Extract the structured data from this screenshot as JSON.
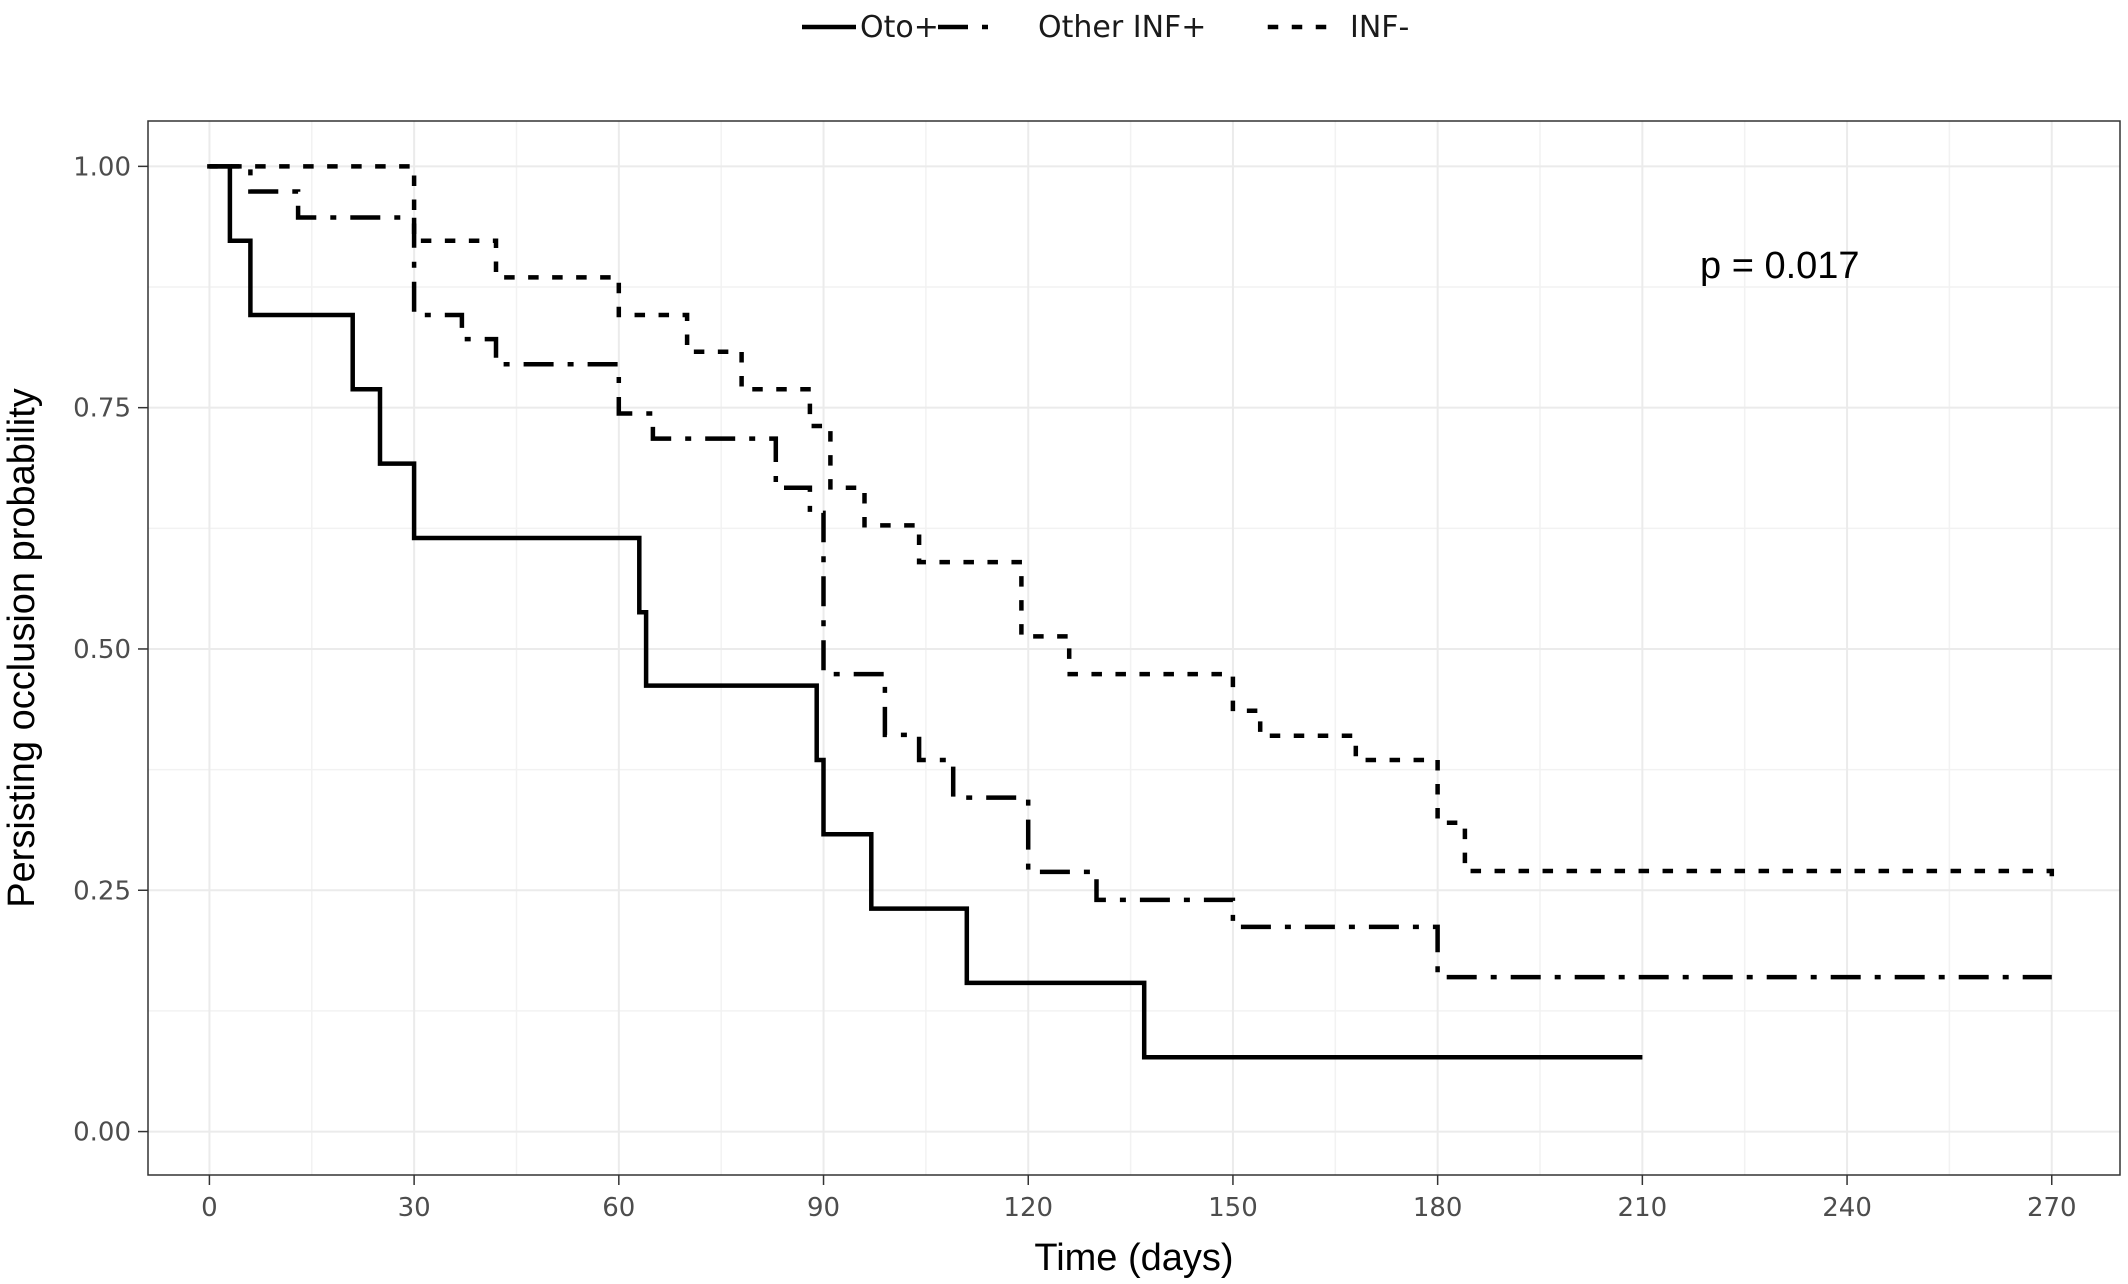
{
  "chart_data": {
    "type": "line",
    "subtype": "step",
    "xlabel": "Time (days)",
    "ylabel": "Persisting occlusion probability",
    "xlim": [
      -9,
      280
    ],
    "ylim": [
      -0.045,
      1.047
    ],
    "xticks": [
      0,
      30,
      60,
      90,
      120,
      150,
      180,
      210,
      240,
      270
    ],
    "xtick_labels": [
      "0",
      "30",
      "60",
      "90",
      "120",
      "150",
      "180",
      "210",
      "240",
      "270"
    ],
    "yticks": [
      0,
      0.25,
      0.5,
      0.75,
      1.0
    ],
    "ytick_labels": [
      "0.00",
      "0.25",
      "0.50",
      "0.75",
      "1.00"
    ],
    "grid": true,
    "legend_position": "top",
    "annotation": "p = 0.017",
    "series": [
      {
        "name": "Oto+",
        "line_style": "solid",
        "color": "#000000",
        "x": [
          0,
          3,
          6,
          21,
          25,
          30,
          63,
          64,
          89,
          90,
          97,
          111,
          137,
          210
        ],
        "y": [
          1.0,
          0.923,
          0.846,
          0.769,
          0.692,
          0.615,
          0.538,
          0.462,
          0.385,
          0.308,
          0.231,
          0.154,
          0.077,
          0.077
        ]
      },
      {
        "name": "Other INF+",
        "line_style": "dashdot",
        "color": "#000000",
        "x": [
          0,
          6,
          13,
          30,
          37,
          42,
          60,
          65,
          83,
          88,
          90,
          99,
          104,
          109,
          120,
          130,
          150,
          180,
          270
        ],
        "y": [
          1.0,
          0.974,
          0.947,
          0.846,
          0.821,
          0.795,
          0.744,
          0.718,
          0.667,
          0.641,
          0.474,
          0.411,
          0.385,
          0.346,
          0.269,
          0.24,
          0.212,
          0.16,
          0.16
        ]
      },
      {
        "name": "INF-",
        "line_style": "dotted",
        "color": "#000000",
        "x": [
          0,
          30,
          42,
          60,
          70,
          78,
          88,
          91,
          96,
          104,
          119,
          126,
          150,
          154,
          168,
          180,
          184,
          270
        ],
        "y": [
          1.0,
          0.923,
          0.885,
          0.846,
          0.808,
          0.769,
          0.731,
          0.667,
          0.628,
          0.59,
          0.513,
          0.474,
          0.436,
          0.41,
          0.385,
          0.32,
          0.27,
          0.25
        ]
      }
    ]
  }
}
